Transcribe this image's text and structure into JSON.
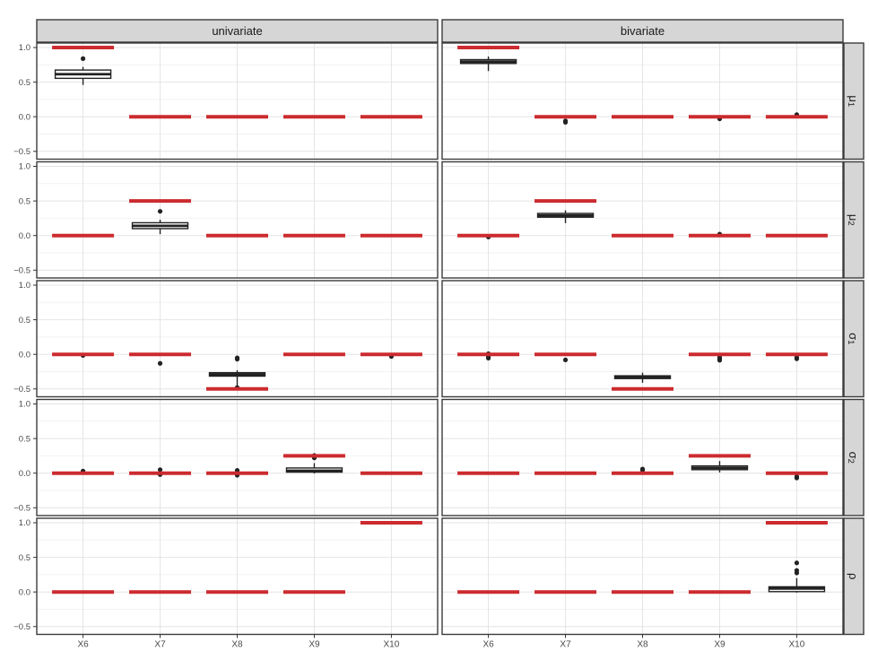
{
  "chart_data": {
    "type": "boxplot",
    "description": "Faceted boxplot grid (ggplot style): estimate distributions per variable with red reference segments for true values",
    "facet_columns": [
      "univariate",
      "bivariate"
    ],
    "facet_rows": [
      {
        "main": "μ",
        "sub": "1"
      },
      {
        "main": "μ",
        "sub": "2"
      },
      {
        "main": "σ",
        "sub": "1"
      },
      {
        "main": "σ",
        "sub": "2"
      },
      {
        "main": "ρ",
        "sub": ""
      }
    ],
    "categories": [
      "X6",
      "X7",
      "X8",
      "X9",
      "X10"
    ],
    "y_ticks": [
      {
        "value": 1.0,
        "label": "1.0"
      },
      {
        "value": 0.5,
        "label": "0.5"
      },
      {
        "value": 0.0,
        "label": "0.0"
      },
      {
        "value": -0.5,
        "label": "−0.5"
      }
    ],
    "y_minor_ticks": [
      0.75,
      0.25,
      -0.25
    ],
    "ylim": [
      -0.613,
      1.065
    ],
    "grid": true,
    "legend": "none",
    "colors": {
      "ref_line": "#CC2B2F",
      "box_border": "#222222",
      "box_fill": "#FFFFFF",
      "outlier": "#222222",
      "strip_fill": "#D6D6D6",
      "strip_border": "#3B3B3B",
      "panel_border": "#3B3B3B",
      "grid_major": "#E4E4E4",
      "grid_minor": "#F2F2F2",
      "tick_label": "#4A4A4A",
      "strip_text": "#1A1A1A"
    },
    "panels": [
      {
        "row": "mu1",
        "column": "univariate",
        "cells": [
          {
            "x": "X6",
            "ref": 1.0,
            "box": {
              "whislo": 0.46,
              "q1": 0.555,
              "med": 0.615,
              "q3": 0.675,
              "whishi": 0.72
            },
            "outliers": [
              0.84
            ]
          },
          {
            "x": "X7",
            "ref": 0.0,
            "box": null,
            "outliers": []
          },
          {
            "x": "X8",
            "ref": 0.0,
            "box": null,
            "outliers": []
          },
          {
            "x": "X9",
            "ref": 0.0,
            "box": null,
            "outliers": []
          },
          {
            "x": "X10",
            "ref": 0.0,
            "box": null,
            "outliers": []
          }
        ]
      },
      {
        "row": "mu1",
        "column": "bivariate",
        "cells": [
          {
            "x": "X6",
            "ref": 1.0,
            "box": {
              "whislo": 0.66,
              "q1": 0.77,
              "med": 0.795,
              "q3": 0.825,
              "whishi": 0.87
            },
            "outliers": []
          },
          {
            "x": "X7",
            "ref": 0.0,
            "box": null,
            "outliers": [
              -0.06,
              -0.08
            ]
          },
          {
            "x": "X8",
            "ref": 0.0,
            "box": null,
            "outliers": []
          },
          {
            "x": "X9",
            "ref": 0.0,
            "box": null,
            "outliers": [
              -0.03
            ]
          },
          {
            "x": "X10",
            "ref": 0.0,
            "box": null,
            "outliers": [
              0.03
            ]
          }
        ]
      },
      {
        "row": "mu2",
        "column": "univariate",
        "cells": [
          {
            "x": "X6",
            "ref": 0.0,
            "box": null,
            "outliers": []
          },
          {
            "x": "X7",
            "ref": 0.5,
            "box": {
              "whislo": 0.02,
              "q1": 0.1,
              "med": 0.14,
              "q3": 0.185,
              "whishi": 0.23
            },
            "outliers": [
              0.35
            ]
          },
          {
            "x": "X8",
            "ref": 0.0,
            "box": null,
            "outliers": []
          },
          {
            "x": "X9",
            "ref": 0.0,
            "box": null,
            "outliers": []
          },
          {
            "x": "X10",
            "ref": 0.0,
            "box": null,
            "outliers": []
          }
        ]
      },
      {
        "row": "mu2",
        "column": "bivariate",
        "cells": [
          {
            "x": "X6",
            "ref": 0.0,
            "box": null,
            "outliers": [
              -0.02
            ]
          },
          {
            "x": "X7",
            "ref": 0.5,
            "box": {
              "whislo": 0.18,
              "q1": 0.265,
              "med": 0.29,
              "q3": 0.32,
              "whishi": 0.365
            },
            "outliers": []
          },
          {
            "x": "X8",
            "ref": 0.0,
            "box": null,
            "outliers": []
          },
          {
            "x": "X9",
            "ref": 0.0,
            "box": null,
            "outliers": [
              0.02
            ]
          },
          {
            "x": "X10",
            "ref": 0.0,
            "box": null,
            "outliers": []
          }
        ]
      },
      {
        "row": "sigma1",
        "column": "univariate",
        "cells": [
          {
            "x": "X6",
            "ref": 0.0,
            "box": null,
            "outliers": [
              -0.015
            ]
          },
          {
            "x": "X7",
            "ref": 0.0,
            "box": null,
            "outliers": [
              -0.13
            ]
          },
          {
            "x": "X8",
            "ref": -0.5,
            "box": {
              "whislo": -0.47,
              "q1": -0.315,
              "med": -0.29,
              "q3": -0.265,
              "whishi": -0.23
            },
            "outliers": [
              -0.05,
              -0.07,
              -0.48
            ]
          },
          {
            "x": "X9",
            "ref": 0.0,
            "box": null,
            "outliers": []
          },
          {
            "x": "X10",
            "ref": 0.0,
            "box": null,
            "outliers": [
              -0.03
            ]
          }
        ]
      },
      {
        "row": "sigma1",
        "column": "bivariate",
        "cells": [
          {
            "x": "X6",
            "ref": 0.0,
            "box": null,
            "outliers": [
              0.01,
              -0.035,
              -0.055
            ]
          },
          {
            "x": "X7",
            "ref": 0.0,
            "box": null,
            "outliers": [
              -0.08
            ]
          },
          {
            "x": "X8",
            "ref": -0.5,
            "box": {
              "whislo": -0.41,
              "q1": -0.35,
              "med": -0.33,
              "q3": -0.31,
              "whishi": -0.265
            },
            "outliers": []
          },
          {
            "x": "X9",
            "ref": 0.0,
            "box": null,
            "outliers": [
              -0.045,
              -0.065,
              -0.085
            ]
          },
          {
            "x": "X10",
            "ref": 0.0,
            "box": null,
            "outliers": [
              -0.045,
              -0.065
            ]
          }
        ]
      },
      {
        "row": "sigma2",
        "column": "univariate",
        "cells": [
          {
            "x": "X6",
            "ref": 0.0,
            "box": null,
            "outliers": [
              0.03
            ]
          },
          {
            "x": "X7",
            "ref": 0.0,
            "box": null,
            "outliers": [
              0.05,
              -0.02
            ]
          },
          {
            "x": "X8",
            "ref": 0.0,
            "box": null,
            "outliers": [
              0.04,
              -0.03
            ]
          },
          {
            "x": "X9",
            "ref": 0.25,
            "box": {
              "whislo": -0.005,
              "q1": 0.015,
              "med": 0.035,
              "q3": 0.075,
              "whishi": 0.145
            },
            "outliers": [
              0.22,
              0.255
            ]
          },
          {
            "x": "X10",
            "ref": 0.0,
            "box": null,
            "outliers": []
          }
        ]
      },
      {
        "row": "sigma2",
        "column": "bivariate",
        "cells": [
          {
            "x": "X6",
            "ref": 0.0,
            "box": null,
            "outliers": []
          },
          {
            "x": "X7",
            "ref": 0.0,
            "box": null,
            "outliers": []
          },
          {
            "x": "X8",
            "ref": 0.0,
            "box": null,
            "outliers": [
              0.045,
              0.06
            ]
          },
          {
            "x": "X9",
            "ref": 0.25,
            "box": {
              "whislo": 0.01,
              "q1": 0.05,
              "med": 0.075,
              "q3": 0.105,
              "whishi": 0.175
            },
            "outliers": []
          },
          {
            "x": "X10",
            "ref": 0.0,
            "box": null,
            "outliers": [
              -0.05,
              -0.07
            ]
          }
        ]
      },
      {
        "row": "rho",
        "column": "univariate",
        "cells": [
          {
            "x": "X6",
            "ref": 0.0,
            "box": null,
            "outliers": []
          },
          {
            "x": "X7",
            "ref": 0.0,
            "box": null,
            "outliers": []
          },
          {
            "x": "X8",
            "ref": 0.0,
            "box": null,
            "outliers": []
          },
          {
            "x": "X9",
            "ref": 0.0,
            "box": null,
            "outliers": []
          },
          {
            "x": "X10",
            "ref": 1.0,
            "box": null,
            "outliers": []
          }
        ]
      },
      {
        "row": "rho",
        "column": "bivariate",
        "cells": [
          {
            "x": "X6",
            "ref": 0.0,
            "box": null,
            "outliers": []
          },
          {
            "x": "X7",
            "ref": 0.0,
            "box": null,
            "outliers": []
          },
          {
            "x": "X8",
            "ref": 0.0,
            "box": null,
            "outliers": []
          },
          {
            "x": "X9",
            "ref": 0.0,
            "box": null,
            "outliers": []
          },
          {
            "x": "X10",
            "ref": 1.0,
            "box": {
              "whislo": -0.01,
              "q1": 0.005,
              "med": 0.05,
              "q3": 0.075,
              "whishi": 0.2
            },
            "outliers": [
              0.275,
              0.31,
              0.42
            ]
          }
        ]
      }
    ]
  }
}
